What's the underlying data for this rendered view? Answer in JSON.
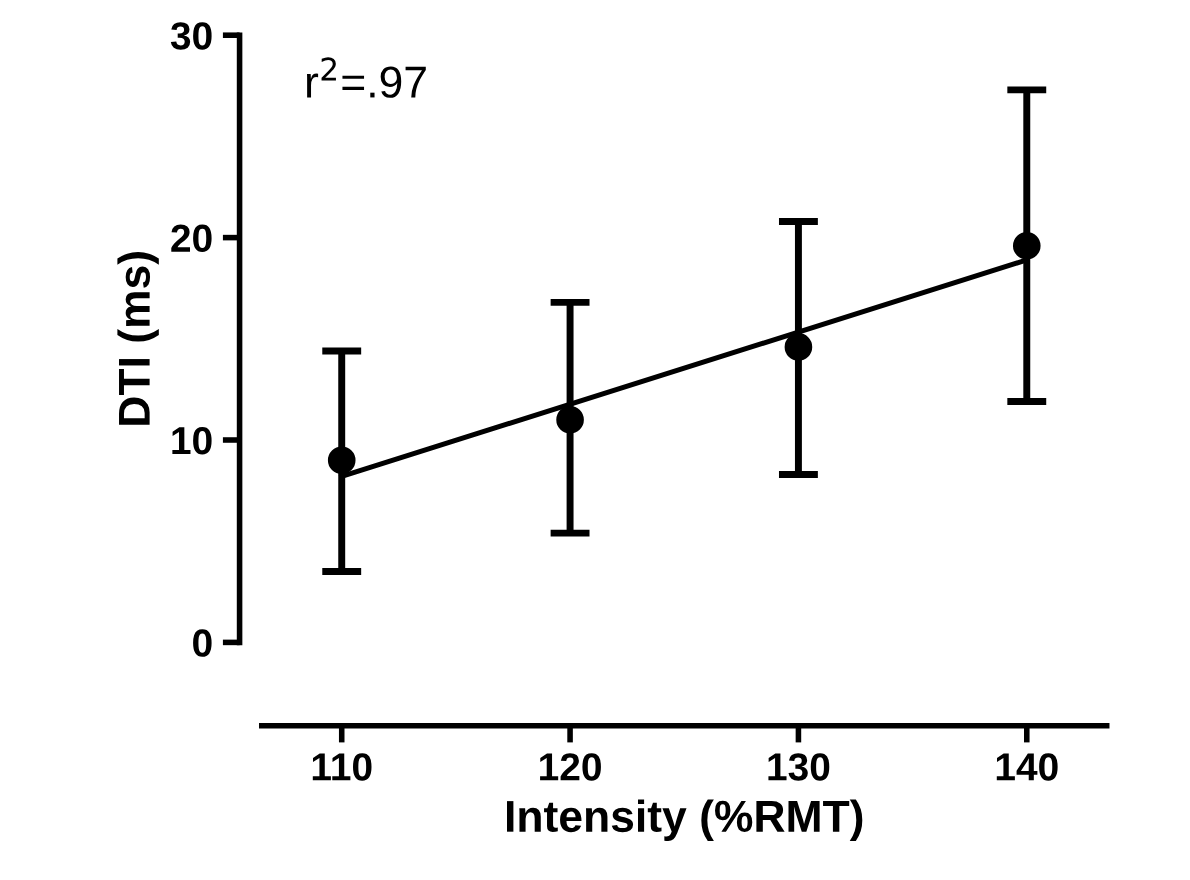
{
  "chart_data": {
    "type": "scatter",
    "xlabel": "Intensity (%RMT)",
    "ylabel": "DTI (ms)",
    "x": [
      110,
      120,
      130,
      140
    ],
    "series": [
      {
        "color": "#000000",
        "values": [
          9.0,
          11.0,
          14.6,
          19.6
        ],
        "errors": [
          [
            3.5,
            14.4
          ],
          [
            5.4,
            16.8
          ],
          [
            8.3,
            20.8
          ],
          [
            11.9,
            27.3
          ]
        ],
        "marker": "circle"
      },
      {
        "type": "line",
        "color": "#000000",
        "x": [
          110,
          140
        ],
        "values": [
          8.2,
          18.9
        ],
        "line_style": "solid"
      }
    ],
    "xlim": [
      106.5,
      143.5
    ],
    "xticks": [
      110,
      120,
      130,
      140
    ],
    "ylim": [
      0,
      30
    ],
    "yticks": [
      0,
      10,
      20,
      30
    ],
    "annotations": [
      {
        "text": "r$^{2}$=.97"
      }
    ],
    "grid": false,
    "legend": false
  }
}
